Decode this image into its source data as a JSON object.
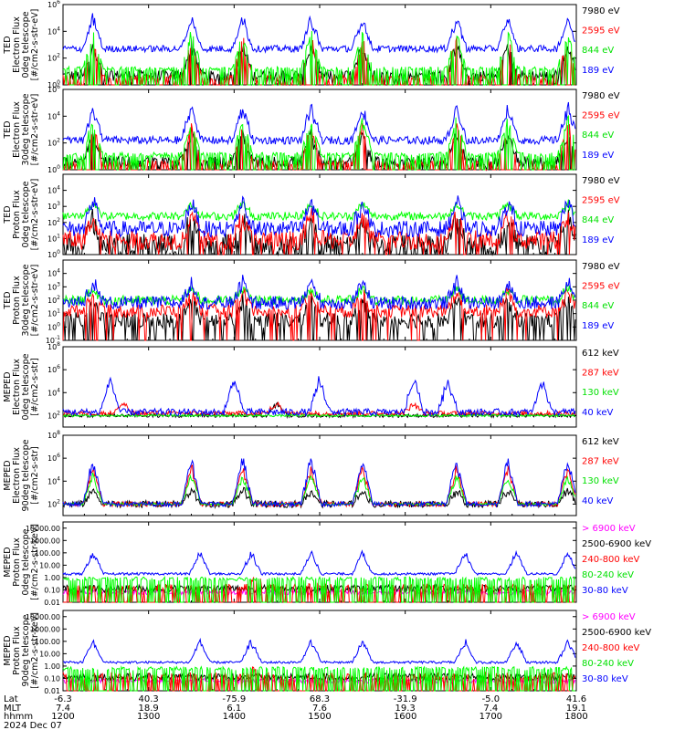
{
  "chart_data": {
    "type": "line",
    "x_axis": {
      "lat": [
        "-6.3",
        "40.3",
        "-75.9",
        "68.3",
        "-31.9",
        "-5.0",
        "41.6"
      ],
      "mlt": [
        "7.4",
        "18.9",
        "6.1",
        "7.6",
        "19.3",
        "7.4",
        "19.1"
      ],
      "hhmm": [
        "1200",
        "1300",
        "1400",
        "1500",
        "1600",
        "1700",
        "1800"
      ],
      "row_labels": [
        "Lat",
        "MLT",
        "hhmm"
      ],
      "date": "2024 Dec 07",
      "range_minutes": [
        0,
        360
      ]
    },
    "panels": [
      {
        "ylabel": [
          "TED",
          "Electron Flux",
          "0deg telescope",
          "[#/cm2-s-str-eV]"
        ],
        "ylim": [
          0,
          6
        ],
        "yticks": [
          {
            "pos": 0,
            "t": "10",
            "e": "0"
          },
          {
            "pos": 2,
            "t": "10",
            "e": "2"
          },
          {
            "pos": 4,
            "t": "10",
            "e": "4"
          },
          {
            "pos": 6,
            "t": "10",
            "e": "6"
          }
        ],
        "series": [
          {
            "name": "7980 eV",
            "color": "#000000",
            "baseline": 0.7,
            "noise": 0.4,
            "bursts": [
              0.35,
              1.5,
              2.1,
              2.9,
              3.5,
              4.6,
              5.2,
              5.9
            ],
            "burstHeight": 2.5,
            "drop": 0.1
          },
          {
            "name": "2595 eV",
            "color": "#ff0000",
            "baseline": 0.6,
            "noise": 0.2,
            "bursts": [
              0.35,
              1.5,
              2.1,
              2.9,
              3.5,
              4.6,
              5.2,
              5.9
            ],
            "burstHeight": 3.2,
            "drop": 0.6
          },
          {
            "name": "844 eV",
            "color": "#00ff00",
            "baseline": 1.2,
            "noise": 0.15,
            "bursts": [
              0.35,
              1.5,
              2.1,
              2.9,
              3.5,
              4.6,
              5.2,
              5.9
            ],
            "burstHeight": 3.0,
            "drop": 0.4
          },
          {
            "name": "189 eV",
            "color": "#0000ff",
            "baseline": 2.7,
            "noise": 0.25,
            "bursts": [
              0.35,
              1.5,
              2.1,
              2.9,
              3.5,
              4.6,
              5.2,
              5.9
            ],
            "burstHeight": 2.6,
            "drop": 0
          }
        ]
      },
      {
        "ylabel": [
          "TED",
          "Electron Flux",
          "30deg telescope",
          "[#/cm2-s-str-eV]"
        ],
        "ylim": [
          0,
          6
        ],
        "yticks": [
          {
            "pos": 0,
            "t": "10",
            "e": "0"
          },
          {
            "pos": 2,
            "t": "10",
            "e": "2"
          },
          {
            "pos": 4,
            "t": "10",
            "e": "4"
          },
          {
            "pos": 6,
            "t": "10",
            "e": "6"
          }
        ],
        "series": [
          {
            "name": "7980 eV",
            "color": "#000000",
            "baseline": 0.6,
            "noise": 0.4,
            "bursts": [
              0.35,
              1.5,
              2.1,
              2.9,
              3.5,
              4.6,
              5.2,
              5.9
            ],
            "burstHeight": 2.4,
            "drop": 0.1
          },
          {
            "name": "2595 eV",
            "color": "#ff0000",
            "baseline": 0.5,
            "noise": 0.2,
            "bursts": [
              0.35,
              1.5,
              2.1,
              2.9,
              3.5,
              4.6,
              5.2,
              5.9
            ],
            "burstHeight": 3.3,
            "drop": 0.5
          },
          {
            "name": "844 eV",
            "color": "#00ff00",
            "baseline": 1.1,
            "noise": 0.2,
            "bursts": [
              0.35,
              1.5,
              2.1,
              2.9,
              3.5,
              4.6,
              5.2,
              5.9
            ],
            "burstHeight": 3.0,
            "drop": 0.3
          },
          {
            "name": "189 eV",
            "color": "#0000ff",
            "baseline": 2.2,
            "noise": 0.3,
            "bursts": [
              0.35,
              1.5,
              2.1,
              2.9,
              3.5,
              4.6,
              5.2,
              5.9
            ],
            "burstHeight": 2.8,
            "drop": 0
          }
        ]
      },
      {
        "ylabel": [
          "TED",
          "Proton Flux",
          "0deg telescope",
          "[#/cm2-s-str-eV]"
        ],
        "ylim": [
          0,
          5
        ],
        "yticks": [
          {
            "pos": 0,
            "t": "10",
            "e": "0"
          },
          {
            "pos": 1,
            "t": "10",
            "e": "1"
          },
          {
            "pos": 2,
            "t": "10",
            "e": "2"
          },
          {
            "pos": 3,
            "t": "10",
            "e": "3"
          },
          {
            "pos": 4,
            "t": "10",
            "e": "4"
          }
        ],
        "series": [
          {
            "name": "7980 eV",
            "color": "#000000",
            "baseline": 0.6,
            "noise": 0.7,
            "bursts": [
              0.35,
              1.5,
              2.1,
              2.9,
              3.5,
              4.6,
              5.2,
              5.9
            ],
            "burstHeight": 1.8,
            "drop": 0.2
          },
          {
            "name": "2595 eV",
            "color": "#ff0000",
            "baseline": 0.9,
            "noise": 0.6,
            "bursts": [
              0.35,
              1.5,
              2.1,
              2.9,
              3.5,
              4.6,
              5.2,
              5.9
            ],
            "burstHeight": 1.8,
            "drop": 0.1
          },
          {
            "name": "844 eV",
            "color": "#00ff00",
            "baseline": 2.4,
            "noise": 0.25,
            "bursts": [
              0.35,
              1.5,
              2.1,
              2.9,
              3.5,
              4.6,
              5.2,
              5.9
            ],
            "burstHeight": 0.9,
            "drop": 0
          },
          {
            "name": "189 eV",
            "color": "#0000ff",
            "baseline": 1.6,
            "noise": 0.5,
            "bursts": [
              0.35,
              1.5,
              2.1,
              2.9,
              3.5,
              4.6,
              5.2,
              5.9
            ],
            "burstHeight": 2.0,
            "drop": 0
          }
        ]
      },
      {
        "ylabel": [
          "TED",
          "Proton Flux",
          "30deg telescope",
          "[#/cm2-s-str-eV]"
        ],
        "ylim": [
          -1,
          5
        ],
        "yticks": [
          {
            "pos": -1,
            "t": "10",
            "e": "-1"
          },
          {
            "pos": 0,
            "t": "10",
            "e": "0"
          },
          {
            "pos": 1,
            "t": "10",
            "e": "1"
          },
          {
            "pos": 2,
            "t": "10",
            "e": "2"
          },
          {
            "pos": 3,
            "t": "10",
            "e": "3"
          },
          {
            "pos": 4,
            "t": "10",
            "e": "4"
          }
        ],
        "series": [
          {
            "name": "7980 eV",
            "color": "#000000",
            "baseline": 0.5,
            "noise": 0.6,
            "bursts": [
              0.35,
              1.5,
              2.1,
              2.9,
              3.5,
              4.6,
              5.2,
              5.9
            ],
            "burstHeight": 1.6,
            "drop": 0.2
          },
          {
            "name": "2595 eV",
            "color": "#ff0000",
            "baseline": 1.2,
            "noise": 0.5,
            "bursts": [
              0.35,
              1.5,
              2.1,
              2.9,
              3.5,
              4.6,
              5.2,
              5.9
            ],
            "burstHeight": 1.6,
            "drop": 0.1
          },
          {
            "name": "844 eV",
            "color": "#00ff00",
            "baseline": 2.0,
            "noise": 0.35,
            "bursts": [
              0.35,
              1.5,
              2.1,
              2.9,
              3.5,
              4.6,
              5.2,
              5.9
            ],
            "burstHeight": 1.0,
            "drop": 0
          },
          {
            "name": "189 eV",
            "color": "#0000ff",
            "baseline": 1.8,
            "noise": 0.5,
            "bursts": [
              0.35,
              1.5,
              2.1,
              2.9,
              3.5,
              4.6,
              5.2,
              5.9
            ],
            "burstHeight": 1.8,
            "drop": 0
          }
        ]
      },
      {
        "ylabel": [
          "MEPED",
          "Electron Flux",
          "0deg telescope",
          "[#/cm2-s-str]"
        ],
        "ylim": [
          1,
          8
        ],
        "yticks": [
          {
            "pos": 2,
            "t": "10",
            "e": "2"
          },
          {
            "pos": 4,
            "t": "10",
            "e": "4"
          },
          {
            "pos": 6,
            "t": "10",
            "e": "6"
          },
          {
            "pos": 8,
            "t": "10",
            "e": "8"
          }
        ],
        "series": [
          {
            "name": "612 keV",
            "color": "#000000",
            "baseline": 2.0,
            "noise": 0.15,
            "bursts": [
              2.5
            ],
            "burstHeight": 1.2,
            "drop": 0
          },
          {
            "name": "287 keV",
            "color": "#ff0000",
            "baseline": 2.2,
            "noise": 0.2,
            "bursts": [
              0.7,
              2.5,
              4.1
            ],
            "burstHeight": 1.0,
            "drop": 0
          },
          {
            "name": "130 keV",
            "color": "#00ff00",
            "baseline": 2.0,
            "noise": 0.1,
            "bursts": [],
            "burstHeight": 0,
            "drop": 0
          },
          {
            "name": "40 keV",
            "color": "#0000ff",
            "baseline": 2.3,
            "noise": 0.3,
            "bursts": [
              0.55,
              2.0,
              3.0,
              4.1,
              4.5,
              5.6
            ],
            "burstHeight": 3.3,
            "drop": 0
          }
        ]
      },
      {
        "ylabel": [
          "MEPED",
          "Electron Flux",
          "90deg telescope",
          "[#/cm2-s-str]"
        ],
        "ylim": [
          1,
          8
        ],
        "yticks": [
          {
            "pos": 2,
            "t": "10",
            "e": "2"
          },
          {
            "pos": 4,
            "t": "10",
            "e": "4"
          },
          {
            "pos": 6,
            "t": "10",
            "e": "6"
          },
          {
            "pos": 8,
            "t": "10",
            "e": "8"
          }
        ],
        "series": [
          {
            "name": "612 keV",
            "color": "#000000",
            "baseline": 2.0,
            "noise": 0.3,
            "bursts": [
              0.35,
              1.5,
              2.1,
              2.9,
              3.5,
              4.6,
              5.2,
              5.9
            ],
            "burstHeight": 1.4,
            "drop": 0
          },
          {
            "name": "287 keV",
            "color": "#ff0000",
            "baseline": 2.0,
            "noise": 0.2,
            "bursts": [
              0.35,
              1.5,
              2.1,
              2.9,
              3.5,
              4.6,
              5.2,
              5.9
            ],
            "burstHeight": 3.6,
            "drop": 0
          },
          {
            "name": "130 keV",
            "color": "#00ff00",
            "baseline": 2.0,
            "noise": 0.1,
            "bursts": [
              0.35,
              1.5,
              2.1,
              2.9,
              3.5,
              4.6,
              5.2,
              5.9
            ],
            "burstHeight": 2.8,
            "drop": 0
          },
          {
            "name": "40 keV",
            "color": "#0000ff",
            "baseline": 2.0,
            "noise": 0.2,
            "bursts": [
              0.35,
              1.5,
              2.1,
              2.9,
              3.5,
              4.6,
              5.2,
              5.9
            ],
            "burstHeight": 4.5,
            "drop": 0
          }
        ]
      },
      {
        "ylabel": [
          "MEPED",
          "Proton Flux",
          "0deg telescope",
          "[#/cm2-s-str-keV]"
        ],
        "ylim": [
          -2,
          4.5
        ],
        "yticks": [
          {
            "pos": -2,
            "t": "0.01"
          },
          {
            "pos": -1,
            "t": "0.10"
          },
          {
            "pos": 0,
            "t": "1.00"
          },
          {
            "pos": 1,
            "t": "10.00"
          },
          {
            "pos": 2,
            "t": "100.00"
          },
          {
            "pos": 3,
            "t": "1000.00"
          },
          {
            "pos": 4,
            "t": "10000.00"
          }
        ],
        "series": [
          {
            "name": "> 6900 keV",
            "color": "#ff00ff",
            "baseline": -1.2,
            "noise": 0.2,
            "bursts": [],
            "burstHeight": 0,
            "drop": 0
          },
          {
            "name": "2500-6900 keV",
            "color": "#000000",
            "baseline": -0.9,
            "noise": 0.3,
            "bursts": [],
            "burstHeight": 0,
            "drop": 0
          },
          {
            "name": "240-800 keV",
            "color": "#ff0000",
            "baseline": -0.8,
            "noise": 0.3,
            "bursts": [
              2.25
            ],
            "burstHeight": 1.0,
            "drop": 0.5
          },
          {
            "name": "80-240 keV",
            "color": "#00ff00",
            "baseline": -0.1,
            "noise": 0.15,
            "bursts": [],
            "burstHeight": 0,
            "drop": 0.4
          },
          {
            "name": "30-80 keV",
            "color": "#0000ff",
            "baseline": 0.3,
            "noise": 0.1,
            "bursts": [
              0.35,
              1.6,
              2.2,
              2.9,
              3.5,
              4.7,
              5.3,
              5.9
            ],
            "burstHeight": 2.0,
            "drop": 0
          }
        ]
      },
      {
        "ylabel": [
          "MEPED",
          "Proton Flux",
          "90deg telescope",
          "[#/cm2-s-str-keV]"
        ],
        "ylim": [
          -2,
          4.5
        ],
        "yticks": [
          {
            "pos": -2,
            "t": "0.01"
          },
          {
            "pos": -1,
            "t": "0.10"
          },
          {
            "pos": 0,
            "t": "1.00"
          },
          {
            "pos": 1,
            "t": "10.00"
          },
          {
            "pos": 2,
            "t": "100.00"
          },
          {
            "pos": 3,
            "t": "1000.00"
          },
          {
            "pos": 4,
            "t": "10000.00"
          }
        ],
        "series": [
          {
            "name": "> 6900 keV",
            "color": "#ff00ff",
            "baseline": -1.2,
            "noise": 0.2,
            "bursts": [],
            "burstHeight": 0,
            "drop": 0
          },
          {
            "name": "2500-6900 keV",
            "color": "#000000",
            "baseline": -0.9,
            "noise": 0.3,
            "bursts": [],
            "burstHeight": 0,
            "drop": 0
          },
          {
            "name": "240-800 keV",
            "color": "#ff0000",
            "baseline": -0.8,
            "noise": 0.3,
            "bursts": [
              2.25
            ],
            "burstHeight": 0.8,
            "drop": 0.5
          },
          {
            "name": "80-240 keV",
            "color": "#00ff00",
            "baseline": -0.2,
            "noise": 0.15,
            "bursts": [],
            "burstHeight": 0,
            "drop": 0.4
          },
          {
            "name": "30-80 keV",
            "color": "#0000ff",
            "baseline": 0.3,
            "noise": 0.1,
            "bursts": [
              0.35,
              1.6,
              2.2,
              2.9,
              3.5,
              4.7,
              5.3,
              5.9
            ],
            "burstHeight": 2.0,
            "drop": 0
          }
        ]
      }
    ]
  }
}
